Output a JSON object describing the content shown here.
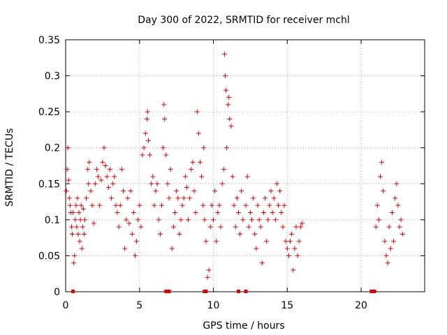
{
  "chart_data": {
    "type": "scatter",
    "title": "Day 300 of 2022, SRMTID for receiver mchl",
    "xlabel": "GPS time / hours",
    "ylabel": "SRMTID / TECUs",
    "xlim": [
      0,
      24.3
    ],
    "ylim": [
      0,
      0.35
    ],
    "xticks": [
      0,
      5,
      10,
      15,
      20
    ],
    "xtick_labels": [
      "0",
      "5",
      "10",
      "15",
      "20"
    ],
    "yticks": [
      0,
      0.05,
      0.1,
      0.15,
      0.2,
      0.25,
      0.3,
      0.35
    ],
    "ytick_labels": [
      "0",
      "0.05",
      "0.1",
      "0.15",
      "0.2",
      "0.25",
      "0.3",
      "0.35"
    ],
    "grid": true,
    "marker": "plus",
    "color": "#e00000",
    "series": [
      {
        "name": "SRMTID",
        "points": [
          [
            0.05,
            0.14
          ],
          [
            0.1,
            0.17
          ],
          [
            0.15,
            0.2
          ],
          [
            0.2,
            0.155
          ],
          [
            0.25,
            0.13
          ],
          [
            0.3,
            0.12
          ],
          [
            0.35,
            0.11
          ],
          [
            0.4,
            0.09
          ],
          [
            0.45,
            0.08
          ],
          [
            0.5,
            0.11
          ],
          [
            0.55,
            0.04
          ],
          [
            0.6,
            0.05
          ],
          [
            0.65,
            0.1
          ],
          [
            0.7,
            0.12
          ],
          [
            0.75,
            0.09
          ],
          [
            0.8,
            0.13
          ],
          [
            0.85,
            0.08
          ],
          [
            0.9,
            0.11
          ],
          [
            0.95,
            0.07
          ],
          [
            1.0,
            0.1
          ],
          [
            1.05,
            0.12
          ],
          [
            1.1,
            0.06
          ],
          [
            1.15,
            0.09
          ],
          [
            1.2,
            0.115
          ],
          [
            1.25,
            0.08
          ],
          [
            1.3,
            0.1
          ],
          [
            1.4,
            0.13
          ],
          [
            1.5,
            0.17
          ],
          [
            1.55,
            0.15
          ],
          [
            1.6,
            0.18
          ],
          [
            1.7,
            0.14
          ],
          [
            1.8,
            0.12
          ],
          [
            1.9,
            0.095
          ],
          [
            2.0,
            0.15
          ],
          [
            2.1,
            0.17
          ],
          [
            2.2,
            0.16
          ],
          [
            2.3,
            0.12
          ],
          [
            2.4,
            0.155
          ],
          [
            2.5,
            0.18
          ],
          [
            2.6,
            0.2
          ],
          [
            2.7,
            0.175
          ],
          [
            2.8,
            0.16
          ],
          [
            2.9,
            0.145
          ],
          [
            3.0,
            0.17
          ],
          [
            3.1,
            0.13
          ],
          [
            3.2,
            0.15
          ],
          [
            3.3,
            0.16
          ],
          [
            3.4,
            0.12
          ],
          [
            3.5,
            0.11
          ],
          [
            3.6,
            0.09
          ],
          [
            3.7,
            0.12
          ],
          [
            3.8,
            0.17
          ],
          [
            3.9,
            0.14
          ],
          [
            4.0,
            0.06
          ],
          [
            4.1,
            0.1
          ],
          [
            4.2,
            0.13
          ],
          [
            4.3,
            0.095
          ],
          [
            4.4,
            0.14
          ],
          [
            4.5,
            0.08
          ],
          [
            4.6,
            0.11
          ],
          [
            4.7,
            0.05
          ],
          [
            4.8,
            0.07
          ],
          [
            4.9,
            0.1
          ],
          [
            5.0,
            0.12
          ],
          [
            5.1,
            0.09
          ],
          [
            5.2,
            0.19
          ],
          [
            5.3,
            0.2
          ],
          [
            5.4,
            0.22
          ],
          [
            5.5,
            0.24
          ],
          [
            5.55,
            0.25
          ],
          [
            5.6,
            0.21
          ],
          [
            5.7,
            0.19
          ],
          [
            5.8,
            0.15
          ],
          [
            5.9,
            0.16
          ],
          [
            6.0,
            0.12
          ],
          [
            6.1,
            0.14
          ],
          [
            6.2,
            0.15
          ],
          [
            6.3,
            0.1
          ],
          [
            6.4,
            0.08
          ],
          [
            6.5,
            0.12
          ],
          [
            6.6,
            0.2
          ],
          [
            6.65,
            0.26
          ],
          [
            6.7,
            0.24
          ],
          [
            6.8,
            0.19
          ],
          [
            6.9,
            0.15
          ],
          [
            7.0,
            0.13
          ],
          [
            7.1,
            0.17
          ],
          [
            7.2,
            0.06
          ],
          [
            7.3,
            0.09
          ],
          [
            7.4,
            0.11
          ],
          [
            7.5,
            0.14
          ],
          [
            7.6,
            0.13
          ],
          [
            7.7,
            0.08
          ],
          [
            7.8,
            0.1
          ],
          [
            7.9,
            0.12
          ],
          [
            8.0,
            0.13
          ],
          [
            8.1,
            0.16
          ],
          [
            8.2,
            0.145
          ],
          [
            8.3,
            0.1
          ],
          [
            8.4,
            0.13
          ],
          [
            8.5,
            0.17
          ],
          [
            8.6,
            0.18
          ],
          [
            8.7,
            0.14
          ],
          [
            8.8,
            0.11
          ],
          [
            8.9,
            0.25
          ],
          [
            9.0,
            0.22
          ],
          [
            9.1,
            0.18
          ],
          [
            9.2,
            0.16
          ],
          [
            9.3,
            0.12
          ],
          [
            9.35,
            0.2
          ],
          [
            9.4,
            0.1
          ],
          [
            9.5,
            0.07
          ],
          [
            9.6,
            0.02
          ],
          [
            9.7,
            0.03
          ],
          [
            9.8,
            0.09
          ],
          [
            9.9,
            0.12
          ],
          [
            10.0,
            0.1
          ],
          [
            10.1,
            0.14
          ],
          [
            10.2,
            0.07
          ],
          [
            10.3,
            0.11
          ],
          [
            10.4,
            0.12
          ],
          [
            10.5,
            0.09
          ],
          [
            10.6,
            0.15
          ],
          [
            10.7,
            0.17
          ],
          [
            10.75,
            0.33
          ],
          [
            10.8,
            0.3
          ],
          [
            10.85,
            0.28
          ],
          [
            10.9,
            0.2
          ],
          [
            11.0,
            0.26
          ],
          [
            11.05,
            0.27
          ],
          [
            11.1,
            0.24
          ],
          [
            11.2,
            0.23
          ],
          [
            11.3,
            0.16
          ],
          [
            11.4,
            0.12
          ],
          [
            11.5,
            0.09
          ],
          [
            11.6,
            0.13
          ],
          [
            11.7,
            0.11
          ],
          [
            11.8,
            0.08
          ],
          [
            11.9,
            0.14
          ],
          [
            12.0,
            0.1
          ],
          [
            12.2,
            0.12
          ],
          [
            12.3,
            0.16
          ],
          [
            12.4,
            0.09
          ],
          [
            12.5,
            0.11
          ],
          [
            12.6,
            0.1
          ],
          [
            12.7,
            0.13
          ],
          [
            12.8,
            0.08
          ],
          [
            12.9,
            0.06
          ],
          [
            13.0,
            0.12
          ],
          [
            13.1,
            0.1
          ],
          [
            13.2,
            0.09
          ],
          [
            13.3,
            0.04
          ],
          [
            13.4,
            0.11
          ],
          [
            13.5,
            0.13
          ],
          [
            13.6,
            0.07
          ],
          [
            13.7,
            0.1
          ],
          [
            13.8,
            0.12
          ],
          [
            13.9,
            0.14
          ],
          [
            14.0,
            0.11
          ],
          [
            14.1,
            0.13
          ],
          [
            14.2,
            0.1
          ],
          [
            14.3,
            0.15
          ],
          [
            14.4,
            0.12
          ],
          [
            14.5,
            0.14
          ],
          [
            14.6,
            0.11
          ],
          [
            14.7,
            0.09
          ],
          [
            14.8,
            0.12
          ],
          [
            14.9,
            0.07
          ],
          [
            15.0,
            0.06
          ],
          [
            15.1,
            0.05
          ],
          [
            15.2,
            0.07
          ],
          [
            15.3,
            0.08
          ],
          [
            15.4,
            0.03
          ],
          [
            15.5,
            0.06
          ],
          [
            15.6,
            0.09
          ],
          [
            15.7,
            0.05
          ],
          [
            15.8,
            0.07
          ],
          [
            15.9,
            0.09
          ],
          [
            16.0,
            0.095
          ],
          [
            21.0,
            0.09
          ],
          [
            21.1,
            0.12
          ],
          [
            21.2,
            0.1
          ],
          [
            21.3,
            0.16
          ],
          [
            21.4,
            0.18
          ],
          [
            21.5,
            0.14
          ],
          [
            21.6,
            0.07
          ],
          [
            21.7,
            0.05
          ],
          [
            21.8,
            0.04
          ],
          [
            21.9,
            0.09
          ],
          [
            22.0,
            0.06
          ],
          [
            22.1,
            0.11
          ],
          [
            22.2,
            0.07
          ],
          [
            22.3,
            0.13
          ],
          [
            22.4,
            0.15
          ],
          [
            22.5,
            0.12
          ],
          [
            22.6,
            0.09
          ],
          [
            22.7,
            0.1
          ],
          [
            22.8,
            0.08
          ]
        ]
      }
    ],
    "zero_points_x": [
      0.5,
      6.8,
      6.9,
      7.0,
      9.4,
      9.5,
      11.7,
      12.2,
      20.7,
      20.8,
      20.9
    ]
  }
}
